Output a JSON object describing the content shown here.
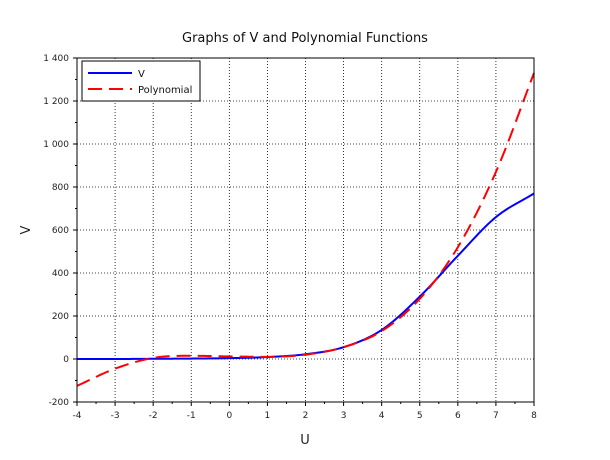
{
  "chart_data": {
    "type": "line",
    "title": "Graphs of V and Polynomial Functions",
    "xlabel": "U",
    "ylabel": "V",
    "xlim": [
      -4,
      8
    ],
    "ylim": [
      -200,
      1400
    ],
    "x_ticks": [
      -4,
      -3,
      -2,
      -1,
      0,
      1,
      2,
      3,
      4,
      5,
      6,
      7,
      8
    ],
    "x_tick_labels": [
      "-4",
      "-3",
      "-2",
      "-1",
      "0",
      "1",
      "2",
      "3",
      "4",
      "5",
      "6",
      "7",
      "8"
    ],
    "y_ticks": [
      -200,
      0,
      200,
      400,
      600,
      800,
      1000,
      1200,
      1400
    ],
    "y_tick_labels": [
      "-200",
      "0",
      "200",
      "400",
      "600",
      "800",
      "1 000",
      "1 200",
      "1 400"
    ],
    "grid": true,
    "legend_position": "top-left",
    "x": [
      -4,
      -3,
      -2,
      -1,
      0,
      1,
      2,
      3,
      4,
      5,
      6,
      7,
      8
    ],
    "series": [
      {
        "name": "V",
        "color": "#0000ff",
        "style": "solid",
        "values": [
          0,
          0,
          1,
          2,
          4,
          9,
          22,
          55,
          135,
          290,
          480,
          660,
          770
        ]
      },
      {
        "name": "Polynomial",
        "color": "#ff0000",
        "style": "dashed",
        "values": [
          -125,
          -45,
          5,
          15,
          12,
          10,
          20,
          55,
          130,
          280,
          520,
          870,
          1330
        ]
      }
    ]
  }
}
